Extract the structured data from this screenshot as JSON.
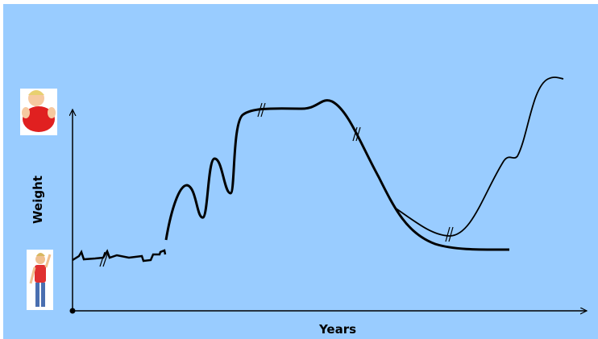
{
  "axes": {
    "y_label": "Weight",
    "x_label": "Years"
  }
}
